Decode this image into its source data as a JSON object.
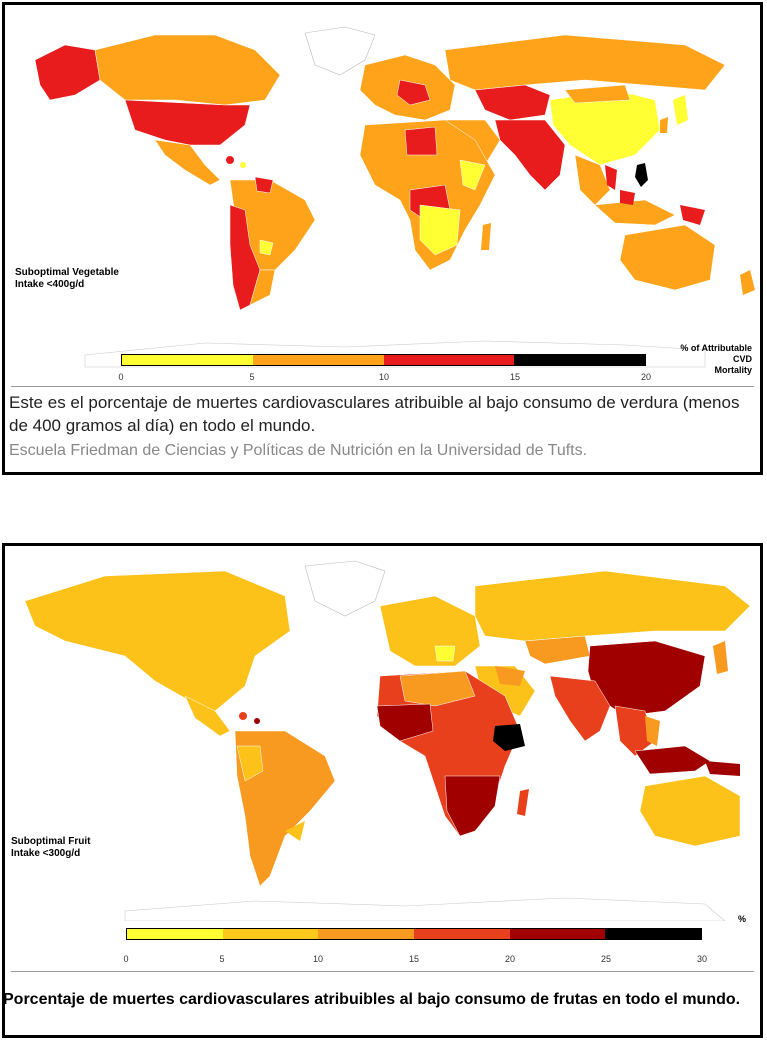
{
  "panel_vegetable": {
    "map_label": "Suboptimal Vegetable\nIntake <400g/d",
    "legend_title": "% of Attributable\nCVD\nMortality",
    "legend_ticks": [
      "0",
      "5",
      "10",
      "15",
      "20"
    ],
    "legend_colors": [
      "#ffff33",
      "#ffa31a",
      "#e81c1c",
      "#000000"
    ],
    "caption": "Este es el porcentaje de muertes cardiovasculares atribuible al bajo consumo de verdura (menos de 400 gramos al día) en todo el mundo.",
    "credit": "Escuela Friedman de Ciencias y Políticas de Nutrición en la Universidad de Tufts."
  },
  "panel_fruit": {
    "map_label": "Suboptimal Fruit\nIntake <300g/d",
    "legend_title": "%",
    "legend_ticks": [
      "0",
      "5",
      "10",
      "15",
      "20",
      "25",
      "30"
    ],
    "legend_colors": [
      "#ffff33",
      "#ffc81a",
      "#f79a1f",
      "#e8401c",
      "#a00000",
      "#000000"
    ],
    "caption": "Porcentaje de muertes cardiovasculares atribuibles al bajo consumo de frutas en todo el mundo."
  },
  "colors": {
    "veg_base": "#f5a623",
    "veg_high": "#e81c1c",
    "veg_low": "#ffff33",
    "veg_orange": "#ffa31a",
    "fruit_base": "#fcc21a",
    "fruit_orange": "#f79a1f",
    "fruit_red": "#e8401c",
    "fruit_dark": "#a00000",
    "black": "#000000"
  }
}
